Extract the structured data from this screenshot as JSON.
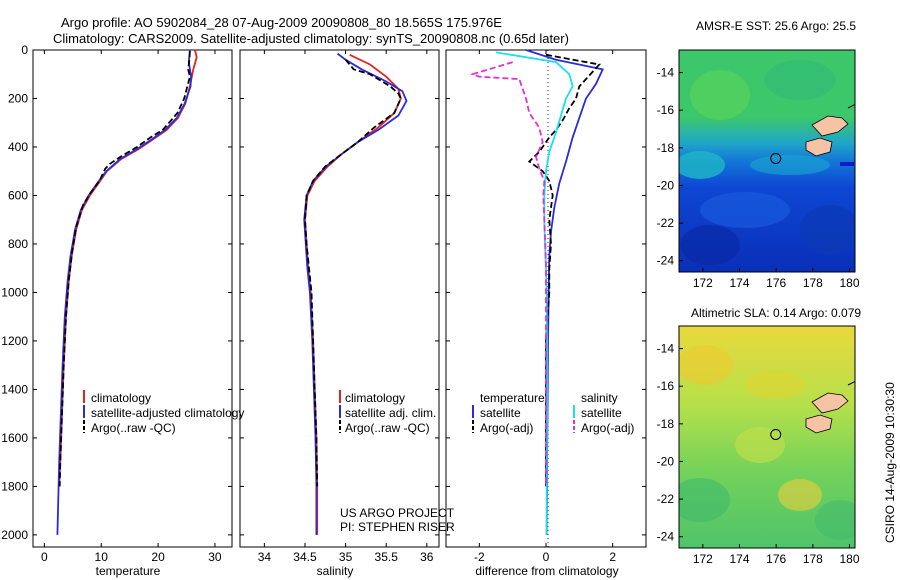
{
  "title_line1": "Argo profile: AO 5902084_28 07-Aug-2009 20090808_80 18.565S 175.976E",
  "title_line2": "Climatology: CARS2009. Satellite-adjusted climatology: synTS_20090808.nc (0.65d later)",
  "project_line1": "US ARGO PROJECT",
  "project_line2": "PI: STEPHEN RISER",
  "footer": "CSIRO 14-Aug-2009 10:30:30",
  "colors": {
    "red": "#e8231f",
    "blue": "#2b2bd9",
    "black": "#000000",
    "cyan": "#19e0ea",
    "magenta": "#e22fd8"
  },
  "chart_data": [
    {
      "type": "line",
      "xlabel": "temperature",
      "xlim": [
        -2,
        33
      ],
      "ylim": [
        2050,
        0
      ],
      "xticks": [
        "0",
        "10",
        "20",
        "30"
      ],
      "yticks": [
        "0",
        "200",
        "400",
        "600",
        "800",
        "1000",
        "1200",
        "1400",
        "1600",
        "1800",
        "2000"
      ],
      "legend": {
        "placement": "lower-right",
        "entries": [
          "climatology",
          "satellite-adjusted climatology",
          "Argo(..raw -QC)"
        ]
      },
      "series": [
        {
          "name": "climatology",
          "color": "red",
          "dash": "solid",
          "points": [
            [
              26.5,
              0
            ],
            [
              26.8,
              30
            ],
            [
              26.2,
              80
            ],
            [
              25.6,
              150
            ],
            [
              24.8,
              220
            ],
            [
              23.5,
              280
            ],
            [
              21.5,
              330
            ],
            [
              19,
              370
            ],
            [
              16.5,
              410
            ],
            [
              13.5,
              450
            ],
            [
              11,
              500
            ],
            [
              9.5,
              550
            ],
            [
              8,
              600
            ],
            [
              6.6,
              660
            ],
            [
              5.6,
              740
            ],
            [
              4.8,
              850
            ],
            [
              4.3,
              950
            ],
            [
              3.8,
              1100
            ],
            [
              3.4,
              1300
            ],
            [
              3.1,
              1500
            ],
            [
              2.8,
              1700
            ],
            [
              2.6,
              1800
            ]
          ]
        },
        {
          "name": "satellite-adjusted climatology",
          "color": "blue",
          "dash": "solid",
          "points": [
            [
              25.6,
              0
            ],
            [
              25.4,
              50
            ],
            [
              25.8,
              110
            ],
            [
              25.7,
              150
            ],
            [
              24.7,
              220
            ],
            [
              23.3,
              280
            ],
            [
              21.2,
              330
            ],
            [
              18.8,
              370
            ],
            [
              16.2,
              410
            ],
            [
              13.3,
              450
            ],
            [
              10.9,
              500
            ],
            [
              9.3,
              550
            ],
            [
              7.8,
              600
            ],
            [
              6.4,
              660
            ],
            [
              5.4,
              740
            ],
            [
              4.6,
              850
            ],
            [
              4.1,
              950
            ],
            [
              3.6,
              1100
            ],
            [
              3.2,
              1300
            ],
            [
              2.9,
              1500
            ],
            [
              2.6,
              1700
            ],
            [
              2.4,
              1900
            ],
            [
              2.3,
              2000
            ]
          ]
        },
        {
          "name": "Argo(..raw -QC)",
          "color": "black",
          "dash": "dashed",
          "points": [
            [
              25.6,
              5
            ],
            [
              25.5,
              40
            ],
            [
              25.3,
              80
            ],
            [
              25.6,
              110
            ],
            [
              24.6,
              200
            ],
            [
              23.4,
              260
            ],
            [
              22.3,
              290
            ],
            [
              20.8,
              330
            ],
            [
              18.7,
              360
            ],
            [
              16.3,
              400
            ],
            [
              13.4,
              440
            ],
            [
              11.5,
              470
            ],
            [
              10.7,
              490
            ],
            [
              9.7,
              540
            ],
            [
              8.1,
              590
            ],
            [
              6.8,
              640
            ],
            [
              5.6,
              730
            ],
            [
              4.9,
              830
            ],
            [
              4.3,
              950
            ],
            [
              3.8,
              1100
            ],
            [
              3.4,
              1300
            ],
            [
              3.1,
              1500
            ],
            [
              2.8,
              1700
            ],
            [
              2.7,
              1800
            ]
          ]
        }
      ]
    },
    {
      "type": "line",
      "xlabel": "salinity",
      "xlim": [
        33.7,
        36.15
      ],
      "ylim": [
        2050,
        0
      ],
      "xticks": [
        "34",
        "34.5",
        "35",
        "35.5",
        "36"
      ],
      "legend": {
        "placement": "lower-right",
        "entries": [
          "climatology",
          "satellite adj. clim.",
          "Argo(..raw -QC)"
        ]
      },
      "series": [
        {
          "name": "climatology",
          "color": "red",
          "dash": "solid",
          "points": [
            [
              35.05,
              20
            ],
            [
              35.3,
              60
            ],
            [
              35.5,
              110
            ],
            [
              35.65,
              160
            ],
            [
              35.68,
              200
            ],
            [
              35.6,
              260
            ],
            [
              35.4,
              320
            ],
            [
              35.15,
              380
            ],
            [
              34.95,
              430
            ],
            [
              34.78,
              480
            ],
            [
              34.62,
              540
            ],
            [
              34.53,
              600
            ],
            [
              34.5,
              700
            ],
            [
              34.52,
              800
            ],
            [
              34.54,
              900
            ],
            [
              34.57,
              1000
            ],
            [
              34.6,
              1200
            ],
            [
              34.62,
              1400
            ],
            [
              34.64,
              1600
            ],
            [
              34.65,
              1800
            ],
            [
              34.65,
              2000
            ]
          ]
        },
        {
          "name": "satellite adj. clim.",
          "color": "blue",
          "dash": "solid",
          "points": [
            [
              34.9,
              15
            ],
            [
              35.0,
              40
            ],
            [
              35.2,
              80
            ],
            [
              35.5,
              130
            ],
            [
              35.7,
              170
            ],
            [
              35.75,
              210
            ],
            [
              35.65,
              270
            ],
            [
              35.4,
              330
            ],
            [
              35.15,
              380
            ],
            [
              34.95,
              430
            ],
            [
              34.76,
              480
            ],
            [
              34.6,
              540
            ],
            [
              34.52,
              600
            ],
            [
              34.49,
              700
            ],
            [
              34.51,
              800
            ],
            [
              34.53,
              900
            ],
            [
              34.56,
              1000
            ],
            [
              34.59,
              1200
            ],
            [
              34.61,
              1400
            ],
            [
              34.63,
              1600
            ],
            [
              34.64,
              1800
            ],
            [
              34.64,
              2000
            ]
          ]
        },
        {
          "name": "Argo(..raw -QC)",
          "color": "black",
          "dash": "dashed",
          "points": [
            [
              35.0,
              40
            ],
            [
              35.1,
              80
            ],
            [
              35.3,
              100
            ],
            [
              35.55,
              150
            ],
            [
              35.65,
              180
            ],
            [
              35.68,
              200
            ],
            [
              35.6,
              260
            ],
            [
              35.35,
              320
            ],
            [
              35.15,
              380
            ],
            [
              34.95,
              430
            ],
            [
              34.75,
              480
            ],
            [
              34.6,
              540
            ],
            [
              34.52,
              600
            ],
            [
              34.5,
              700
            ],
            [
              34.52,
              800
            ],
            [
              34.55,
              900
            ],
            [
              34.58,
              1000
            ],
            [
              34.6,
              1200
            ],
            [
              34.62,
              1400
            ],
            [
              34.64,
              1600
            ],
            [
              34.65,
              1800
            ]
          ]
        }
      ]
    },
    {
      "type": "line",
      "xlabel": "difference from climatology",
      "xlim": [
        -3.0,
        3.0
      ],
      "ylim": [
        2050,
        0
      ],
      "xticks": [
        "-2",
        "0",
        "2"
      ],
      "legend": {
        "placement": "lower-center",
        "headers": [
          "temperature",
          "salinity"
        ],
        "entries": [
          "satellite",
          "Argo(-adj)",
          "satellite",
          "Argo(-adj)"
        ]
      },
      "series": [
        {
          "name": "temperature satellite",
          "color": "blue",
          "dash": "solid",
          "points": [
            [
              -0.6,
              0
            ],
            [
              0.3,
              40
            ],
            [
              1.7,
              80
            ],
            [
              1.5,
              140
            ],
            [
              1.2,
              200
            ],
            [
              1.0,
              280
            ],
            [
              0.8,
              360
            ],
            [
              0.6,
              460
            ],
            [
              0.4,
              550
            ],
            [
              0.25,
              650
            ],
            [
              0.15,
              750
            ],
            [
              0.1,
              850
            ],
            [
              0.08,
              1000
            ],
            [
              0.06,
              1200
            ],
            [
              0.05,
              1400
            ],
            [
              0.04,
              1600
            ],
            [
              0.03,
              1800
            ],
            [
              0.02,
              2000
            ]
          ]
        },
        {
          "name": "temperature Argo(-adj)",
          "color": "black",
          "dash": "dashed",
          "points": [
            [
              0.0,
              20
            ],
            [
              1.6,
              60
            ],
            [
              1.2,
              120
            ],
            [
              1.0,
              150
            ],
            [
              0.9,
              200
            ],
            [
              0.7,
              240
            ],
            [
              0.5,
              290
            ],
            [
              0.3,
              330
            ],
            [
              0.1,
              360
            ],
            [
              -0.2,
              420
            ],
            [
              -0.5,
              460
            ],
            [
              -0.1,
              500
            ],
            [
              0.1,
              540
            ],
            [
              0.2,
              600
            ],
            [
              0.1,
              700
            ],
            [
              0.15,
              800
            ],
            [
              0.1,
              900
            ],
            [
              0.1,
              1000
            ],
            [
              0.0,
              1200
            ],
            [
              0.0,
              1400
            ],
            [
              0.0,
              1500
            ],
            [
              0.0,
              1600
            ],
            [
              0.0,
              1800
            ]
          ]
        },
        {
          "name": "salinity satellite",
          "color": "cyan",
          "dash": "solid",
          "points": [
            [
              -1.5,
              10
            ],
            [
              0.3,
              50
            ],
            [
              0.7,
              100
            ],
            [
              0.8,
              150
            ],
            [
              0.6,
              200
            ],
            [
              0.45,
              270
            ],
            [
              0.3,
              340
            ],
            [
              0.1,
              420
            ],
            [
              0.0,
              500
            ],
            [
              -0.05,
              600
            ],
            [
              -0.05,
              700
            ],
            [
              -0.03,
              800
            ],
            [
              0.0,
              900
            ],
            [
              0.02,
              1000
            ],
            [
              0.03,
              1200
            ],
            [
              0.03,
              1400
            ],
            [
              0.03,
              1600
            ],
            [
              0.02,
              1800
            ],
            [
              0.02,
              2000
            ]
          ]
        },
        {
          "name": "salinity Argo(-adj)",
          "color": "magenta",
          "dash": "dashed",
          "points": [
            [
              -1.0,
              50
            ],
            [
              -2.2,
              100
            ],
            [
              -2.0,
              110
            ],
            [
              -0.8,
              120
            ],
            [
              -0.6,
              200
            ],
            [
              -0.5,
              260
            ],
            [
              -0.2,
              320
            ],
            [
              -0.1,
              380
            ],
            [
              -0.3,
              440
            ],
            [
              -0.2,
              490
            ],
            [
              -0.05,
              540
            ],
            [
              -0.08,
              600
            ],
            [
              -0.05,
              700
            ],
            [
              -0.02,
              800
            ],
            [
              0.0,
              900
            ],
            [
              0.0,
              1000
            ],
            [
              0.0,
              1200
            ],
            [
              0.0,
              1400
            ],
            [
              0.0,
              1600
            ],
            [
              0.0,
              1800
            ]
          ]
        }
      ]
    },
    {
      "type": "heatmap",
      "title": "AMSR-E SST: 25.6 Argo: 25.5",
      "xlim": [
        170.7,
        180.3
      ],
      "ylim": [
        -24.6,
        -12.8
      ],
      "xticks": [
        "172",
        "174",
        "176",
        "178",
        "180"
      ],
      "yticks": [
        "-14",
        "-16",
        "-18",
        "-20",
        "-22",
        "-24"
      ],
      "marker": {
        "lon": 175.976,
        "lat": -18.565
      }
    },
    {
      "type": "heatmap",
      "title": "Altimetric SLA: 0.14 Argo: 0.079",
      "xlim": [
        170.7,
        180.3
      ],
      "ylim": [
        -24.6,
        -12.8
      ],
      "xticks": [
        "172",
        "174",
        "176",
        "178",
        "180"
      ],
      "yticks": [
        "-14",
        "-16",
        "-18",
        "-20",
        "-22",
        "-24"
      ],
      "marker": {
        "lon": 175.976,
        "lat": -18.565
      }
    }
  ]
}
